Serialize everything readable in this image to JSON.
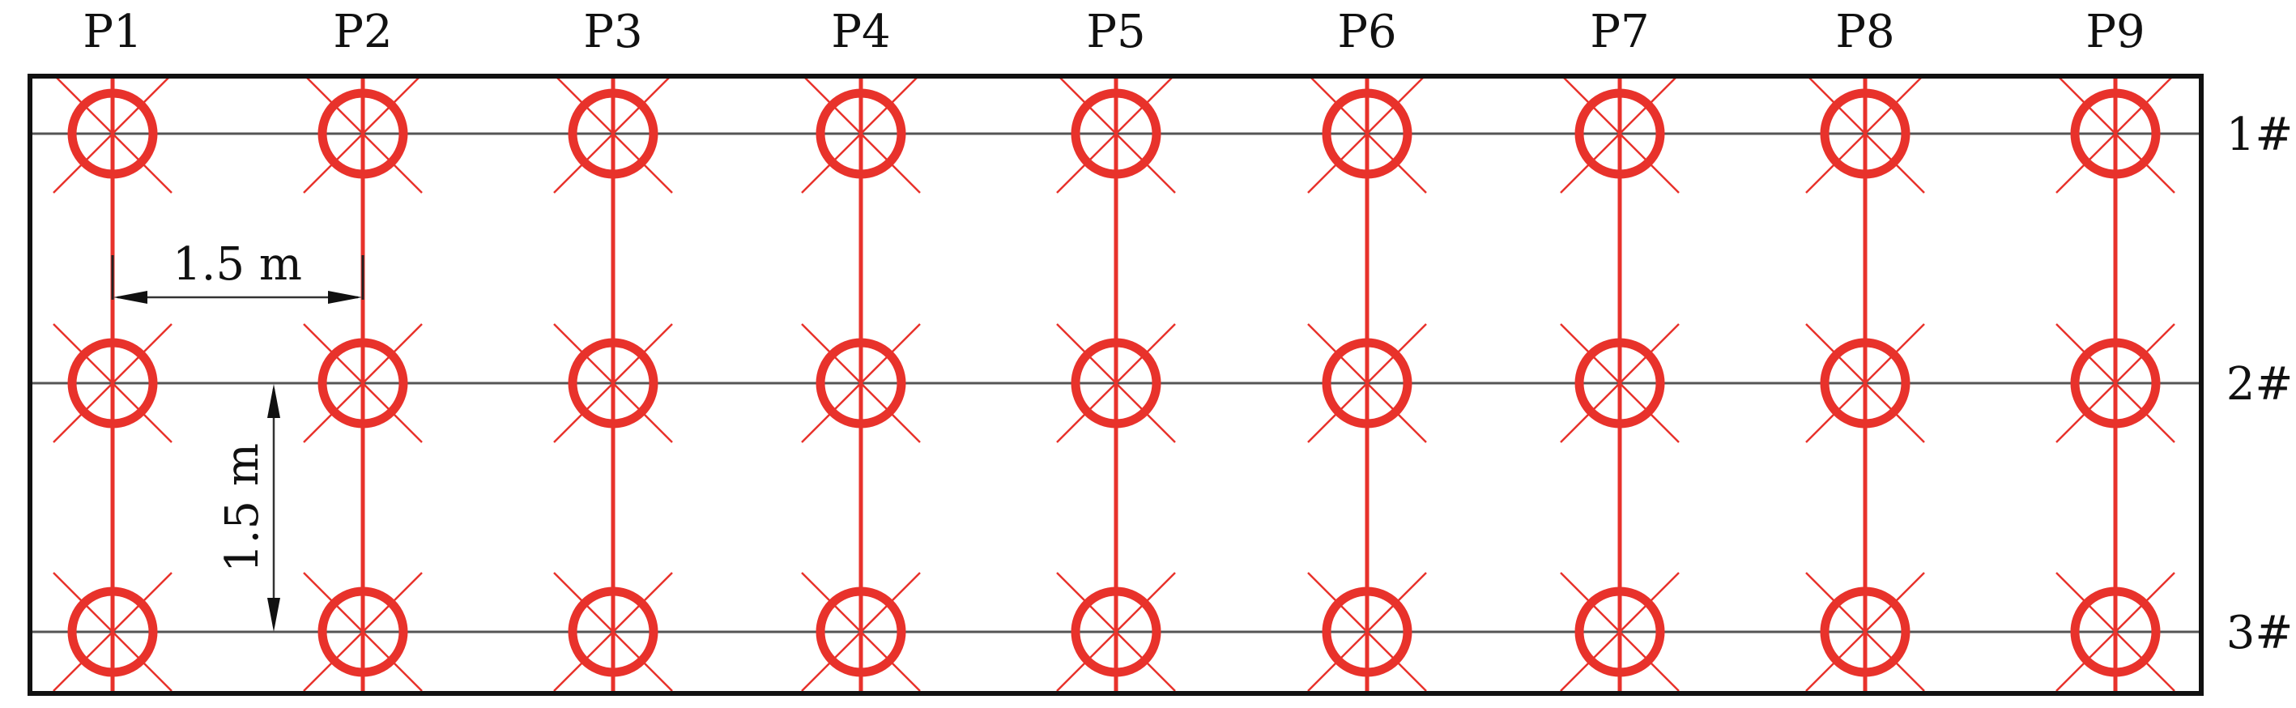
{
  "columns": [
    "P1",
    "P2",
    "P3",
    "P4",
    "P5",
    "P6",
    "P7",
    "P8",
    "P9"
  ],
  "rows": [
    "1#",
    "2#",
    "3#"
  ],
  "dimensions": {
    "horizontal_label": "1.5 m",
    "vertical_label": "1.5 m"
  },
  "marker_icon": "circle-with-cross",
  "colors": {
    "marker": "#e8322b",
    "grid_line": "#555555",
    "frame": "#111111"
  }
}
